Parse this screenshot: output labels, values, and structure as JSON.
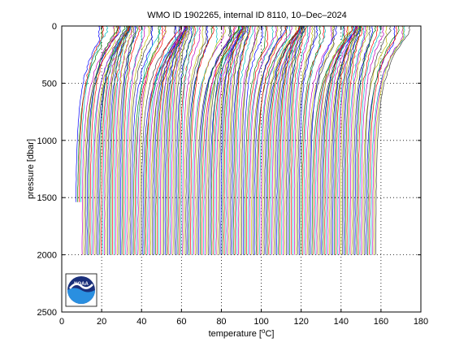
{
  "chart_data": {
    "type": "line",
    "title": "WMO ID 1902265, internal ID 8110, 10–Dec–2024",
    "xlabel_prefix": "temperature [",
    "xlabel_unit_sup": "o",
    "xlabel_suffix": "C]",
    "ylabel": "pressure [dbar]",
    "xlim": [
      0,
      180
    ],
    "ylim": [
      2500,
      0
    ],
    "y_reversed": true,
    "x_ticks": [
      0,
      20,
      40,
      60,
      80,
      100,
      120,
      140,
      160,
      180
    ],
    "y_ticks": [
      0,
      500,
      1000,
      1500,
      2000,
      2500
    ],
    "grid": "dotted",
    "series_colors": [
      "#0000ff",
      "#008000",
      "#ff0000",
      "#00bfbf",
      "#bf00bf",
      "#bfbf00",
      "#404040"
    ],
    "profile_offset_step": 0.8,
    "profiles": {
      "count": 189,
      "first_bottom_pressure_dbar": 1540,
      "typical_bottom_pressure_dbar": 2000,
      "surface_temperature_range": [
        11,
        22
      ],
      "deep_temperature_at_2000dbar": 3.5,
      "first_profile_x_start": 9
    },
    "logo_label": "NOAA"
  }
}
